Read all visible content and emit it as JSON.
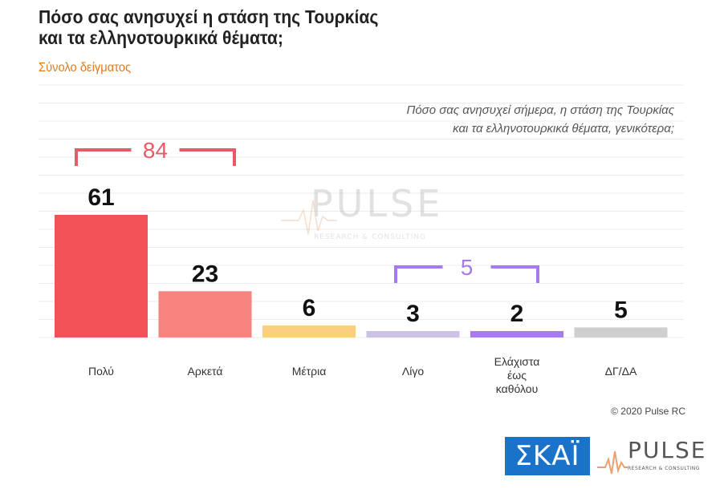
{
  "title": "Πόσο σας ανησυχεί η στάση της Τουρκίας\nκαι τα ελληνοτουρκικά θέματα;",
  "subtitle": "Σύνολο δείγματος",
  "question": "Πόσο σας ανησυχεί σήμερα, η στάση της Τουρκίας\nκαι τα ελληνοτουρκικά θέματα, γενικότερα;",
  "copyright": "© 2020 Pulse RC",
  "watermark": {
    "word": "PULSE",
    "tagline": "RESEARCH & CONSULTING"
  },
  "logos": {
    "skai": "ΣΚΑΪ",
    "pulse": "PULSE",
    "pulse_tagline": "RESEARCH & CONSULTING"
  },
  "colors": {
    "bar_poly": "#f25157",
    "bar_arketa": "#f7837f",
    "bar_metria": "#fccf7e",
    "bar_ligo": "#cdc2e6",
    "bar_elaxista": "#a77ce9",
    "bar_dgda": "#cfcfcf",
    "bracket_red": "#e85a66",
    "bracket_purple": "#a77ce9",
    "accent_orange": "#e07a1f",
    "grid": "#ebebeb"
  },
  "chart_data": {
    "type": "bar",
    "title": "Πόσο σας ανησυχεί η στάση της Τουρκίας και τα ελληνοτουρκικά θέματα;",
    "subtitle": "Σύνολο δείγματος",
    "categories": [
      "Πολύ",
      "Αρκετά",
      "Μέτρια",
      "Λίγο",
      "Ελάχιστα\nέως\nκαθόλου",
      "ΔΓ/ΔΑ"
    ],
    "values": [
      61,
      23,
      6,
      3,
      2,
      5
    ],
    "data_labels": [
      "61",
      "23",
      "6",
      "3",
      "2",
      "5"
    ],
    "bar_colors": [
      "#f25157",
      "#f7837f",
      "#fccf7e",
      "#cdc2e6",
      "#a77ce9",
      "#cfcfcf"
    ],
    "ylim": [
      0,
      63
    ],
    "grid": true,
    "annotations": [
      {
        "text": "84",
        "spans": [
          "Πολύ",
          "Αρκετά"
        ],
        "color": "#e85a66"
      },
      {
        "text": "5",
        "spans": [
          "Λίγο",
          "Ελάχιστα\nέως\nκαθόλου"
        ],
        "color": "#a77ce9"
      }
    ]
  }
}
